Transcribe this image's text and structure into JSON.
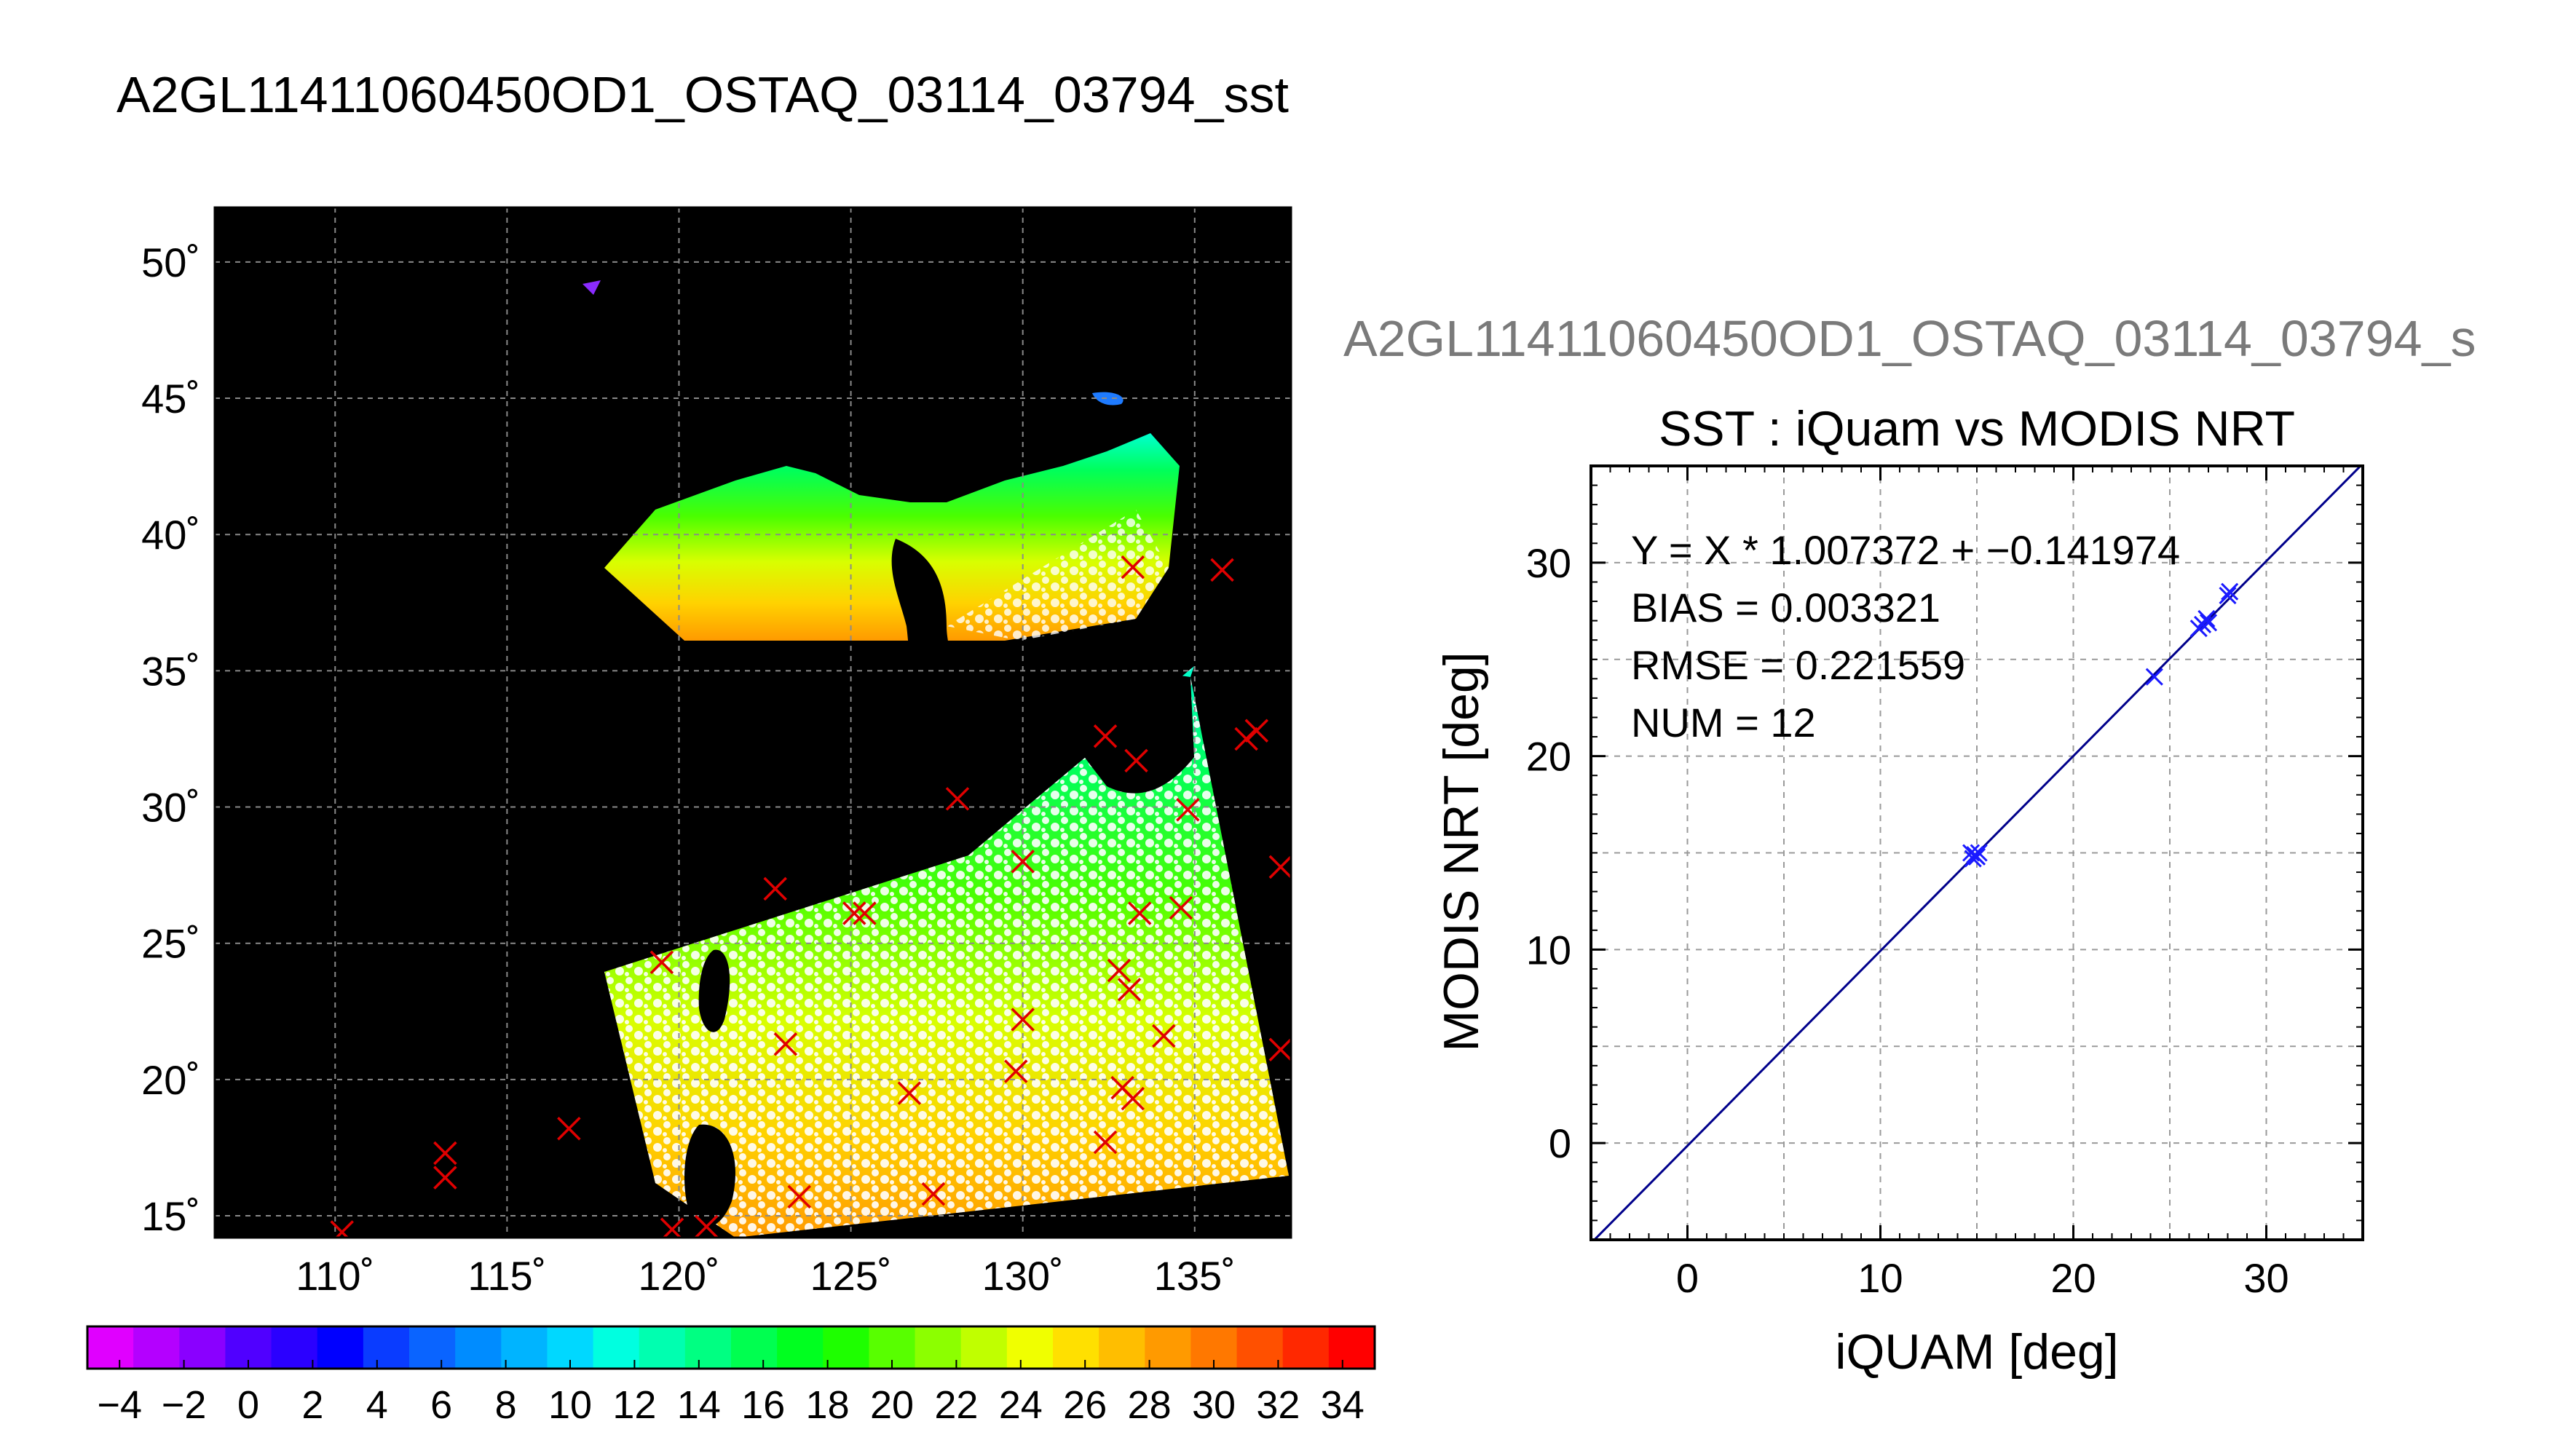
{
  "page": {
    "main_title": "A2GL11411060450OD1_OSTAQ_03114_03794_sst",
    "secondary_title": "A2GL11411060450OD1_OSTAQ_03114_03794_s"
  },
  "chart_data": [
    {
      "type": "map",
      "title": "",
      "x_ticks": [
        "110˚",
        "115˚",
        "120˚",
        "125˚",
        "130˚",
        "135˚"
      ],
      "x_tick_values": [
        110,
        115,
        120,
        125,
        130,
        135
      ],
      "y_ticks": [
        "15˚",
        "20˚",
        "25˚",
        "30˚",
        "35˚",
        "40˚",
        "45˚",
        "50˚"
      ],
      "y_tick_values": [
        15,
        20,
        25,
        30,
        35,
        40,
        45,
        50
      ],
      "xlim": [
        106.5,
        137.8
      ],
      "ylim": [
        14.2,
        52
      ],
      "grid": true,
      "background": "#000000",
      "buoy_markers_lonlat": [
        [
          133.2,
          38.8
        ],
        [
          135.8,
          38.7
        ],
        [
          132.4,
          32.6
        ],
        [
          133.3,
          31.7
        ],
        [
          136.5,
          32.5
        ],
        [
          136.8,
          32.8
        ],
        [
          128.1,
          30.3
        ],
        [
          134.8,
          29.9
        ],
        [
          130.0,
          28.0
        ],
        [
          137.5,
          27.8
        ],
        [
          122.8,
          27.0
        ],
        [
          125.1,
          26.1
        ],
        [
          125.4,
          26.1
        ],
        [
          133.4,
          26.1
        ],
        [
          134.6,
          26.3
        ],
        [
          119.5,
          24.3
        ],
        [
          132.8,
          24.0
        ],
        [
          133.1,
          23.3
        ],
        [
          130.0,
          22.2
        ],
        [
          134.1,
          21.6
        ],
        [
          123.1,
          21.3
        ],
        [
          137.5,
          21.1
        ],
        [
          129.8,
          20.3
        ],
        [
          132.9,
          19.7
        ],
        [
          133.2,
          19.3
        ],
        [
          126.7,
          19.5
        ],
        [
          116.8,
          18.2
        ],
        [
          113.2,
          17.3
        ],
        [
          113.2,
          16.4
        ],
        [
          132.4,
          17.7
        ],
        [
          127.4,
          15.8
        ],
        [
          123.5,
          15.7
        ],
        [
          110.2,
          14.4
        ],
        [
          119.8,
          14.5
        ],
        [
          120.8,
          14.6
        ]
      ],
      "colorbar": {
        "tick_labels": [
          "−4",
          "−2",
          "0",
          "2",
          "4",
          "6",
          "8",
          "10",
          "12",
          "14",
          "16",
          "18",
          "20",
          "22",
          "24",
          "26",
          "28",
          "30",
          "32",
          "34"
        ],
        "range": [
          -5,
          35
        ],
        "colors": [
          "#e000ff",
          "#b400ff",
          "#8a00ff",
          "#5000ff",
          "#2b00ff",
          "#0000ff",
          "#0a3cff",
          "#0a64ff",
          "#008cff",
          "#00b4ff",
          "#00d8ff",
          "#00ffe0",
          "#00ffb0",
          "#00ff82",
          "#00ff50",
          "#00ff20",
          "#1eff00",
          "#58ff00",
          "#8cff00",
          "#c0ff00",
          "#f0ff00",
          "#ffe000",
          "#ffbe00",
          "#ff9a00",
          "#ff7800",
          "#ff5000",
          "#ff2800",
          "#ff0000"
        ]
      }
    },
    {
      "type": "scatter",
      "title": "SST : iQuam vs MODIS NRT",
      "xlabel": "iQUAM [deg]",
      "ylabel": "MODIS NRT [deg]",
      "x_ticks": [
        "0",
        "10",
        "20",
        "30"
      ],
      "x_tick_values": [
        0,
        10,
        20,
        30
      ],
      "y_ticks": [
        "0",
        "10",
        "20",
        "30"
      ],
      "y_tick_values": [
        0,
        10,
        20,
        30
      ],
      "xlim": [
        -5,
        35
      ],
      "ylim": [
        -5,
        35
      ],
      "grid": true,
      "annotations": [
        "Y = X * 1.007372 + −0.141974",
        "BIAS = 0.003321",
        "RMSE = 0.221559",
        "NUM = 12"
      ],
      "fit": {
        "slope": 1.007372,
        "intercept": -0.141974
      },
      "points": [
        [
          14.8,
          14.7
        ],
        [
          14.9,
          14.9
        ],
        [
          15.0,
          14.8
        ],
        [
          14.7,
          15.0
        ],
        [
          15.1,
          15.0
        ],
        [
          24.2,
          24.1
        ],
        [
          26.5,
          26.6
        ],
        [
          26.7,
          26.8
        ],
        [
          26.9,
          27.1
        ],
        [
          27.0,
          26.9
        ],
        [
          28.0,
          28.3
        ],
        [
          28.1,
          28.5
        ]
      ],
      "colors": {
        "points": "#1a1aff",
        "fit_line": "#00008b"
      }
    }
  ]
}
